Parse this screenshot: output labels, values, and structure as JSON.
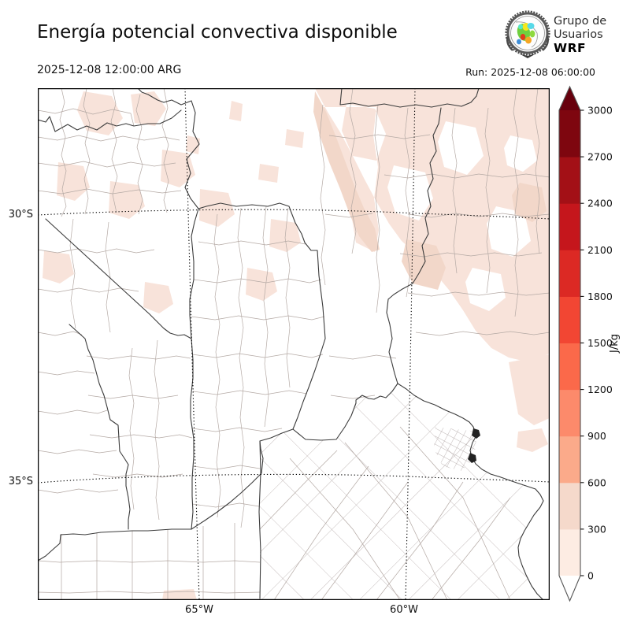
{
  "header": {
    "title": "Energía potencial convectiva disponible",
    "valid_time": "2025-12-08 12:00:00 ARG",
    "run_label": "Run: 2025-12-08 06:00:00",
    "logo": {
      "line1": "Grupo de",
      "line2": "Usuarios",
      "line3": "WRF"
    }
  },
  "map": {
    "lat_labels": [
      "30°S",
      "35°S"
    ],
    "lon_labels": [
      "65°W",
      "60°W"
    ],
    "shade_color": "#f8e3da",
    "shade_color_deep": "#f2d7c9",
    "boundary_color_province": "#3b3b3b",
    "boundary_color_department": "#b4a9a4"
  },
  "colorbar": {
    "unit": "J/kg",
    "levels": [
      0,
      300,
      600,
      900,
      1200,
      1500,
      1800,
      2100,
      2400,
      2700,
      3000
    ],
    "segment_colors": [
      "#fdece3",
      "#f5d9cb",
      "#fbaa8a",
      "#fc8a6b",
      "#fb694a",
      "#f24633",
      "#dc2924",
      "#c5161c",
      "#a31016",
      "#7e060f"
    ],
    "under_color": "#ffffff",
    "over_color": "#67000d"
  },
  "chart_data": {
    "type": "heatmap",
    "title": "Energía potencial convectiva disponible",
    "unit": "J/kg",
    "levels": [
      0,
      300,
      600,
      900,
      1200,
      1500,
      1800,
      2100,
      2400,
      2700,
      3000
    ],
    "visible_values": "shading in lowest bins (0–600 J/kg) over the northeast sector; rest of domain near 0",
    "x_ticks": [
      "65°W",
      "60°W"
    ],
    "y_ticks": [
      "30°S",
      "35°S"
    ],
    "legend_position": "right"
  }
}
